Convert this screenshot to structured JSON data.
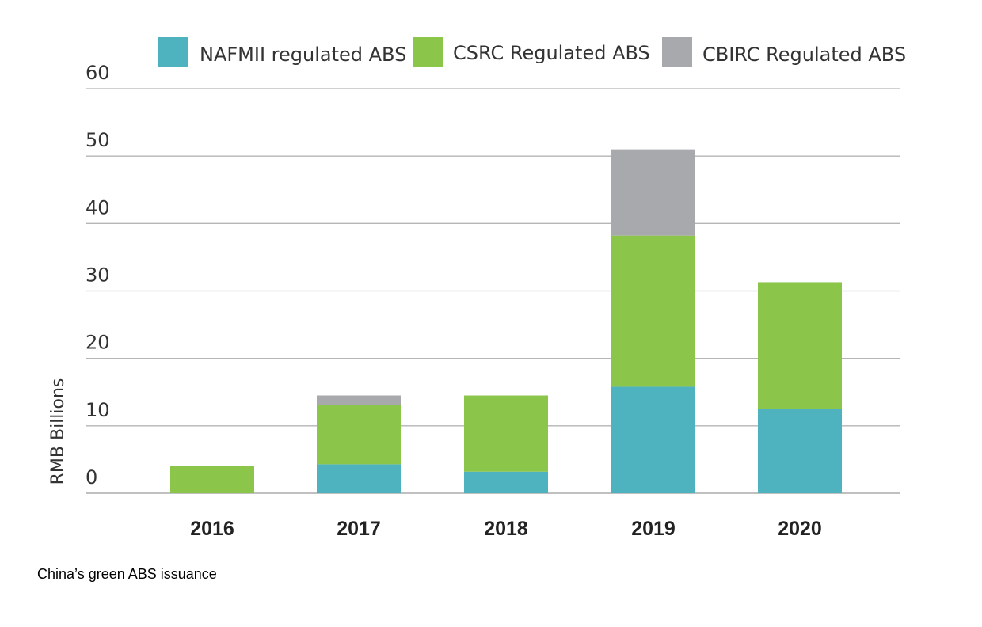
{
  "chart_data": {
    "type": "bar",
    "stacked": true,
    "title": "",
    "xlabel": "",
    "ylabel": "RMB Billions",
    "ylim": [
      0,
      60
    ],
    "yticks": [
      0,
      10,
      20,
      30,
      40,
      50,
      60
    ],
    "grid": true,
    "legend_position": "top",
    "categories": [
      "2016",
      "2017",
      "2018",
      "2019",
      "2020"
    ],
    "series": [
      {
        "name": "NAFMII regulated ABS",
        "color": "#4eb3bf",
        "values": [
          0,
          4.3,
          3.2,
          15.8,
          12.5
        ]
      },
      {
        "name": "CSRC Regulated ABS",
        "color": "#8bc54a",
        "values": [
          4.1,
          8.8,
          11.3,
          22.4,
          18.8
        ]
      },
      {
        "name": "CBIRC Regulated ABS",
        "color": "#a7a9ac",
        "values": [
          0,
          1.4,
          0,
          12.8,
          0
        ]
      }
    ]
  },
  "caption": "China’s green ABS issuance"
}
